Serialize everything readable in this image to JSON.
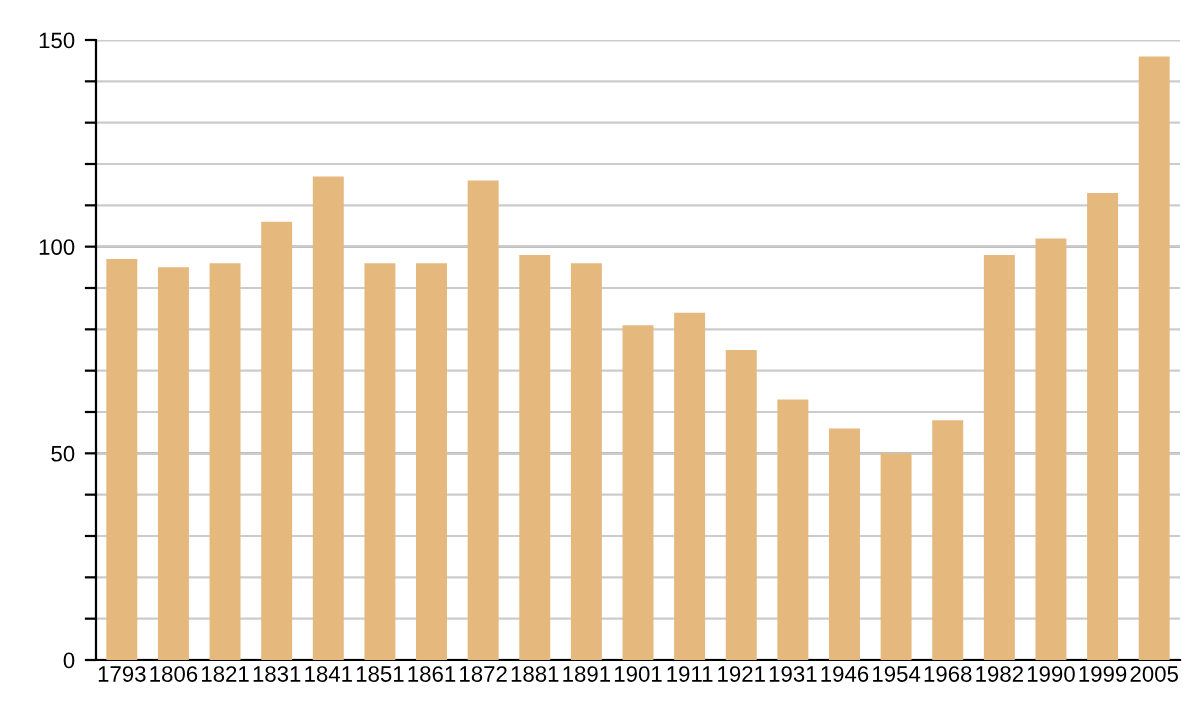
{
  "chart_data": {
    "type": "bar",
    "categories": [
      "1793",
      "1806",
      "1821",
      "1831",
      "1841",
      "1851",
      "1861",
      "1872",
      "1881",
      "1891",
      "1901",
      "1911",
      "1921",
      "1931",
      "1946",
      "1954",
      "1968",
      "1982",
      "1990",
      "1999",
      "2005"
    ],
    "values": [
      97,
      95,
      96,
      106,
      117,
      96,
      96,
      116,
      98,
      96,
      81,
      84,
      75,
      63,
      56,
      50,
      58,
      98,
      102,
      113,
      146
    ],
    "color": "#e5b87e",
    "ylim": [
      0,
      150
    ],
    "yticks": [
      0,
      {
        "value": 10,
        "label": null
      },
      {
        "value": 20,
        "label": null
      },
      {
        "value": 30,
        "label": null
      },
      {
        "value": 40,
        "label": null
      },
      50,
      {
        "value": 60,
        "label": null
      },
      {
        "value": 70,
        "label": null
      },
      {
        "value": 80,
        "label": null
      },
      {
        "value": 90,
        "label": null
      },
      100,
      {
        "value": 110,
        "label": null
      },
      {
        "value": 120,
        "label": null
      },
      {
        "value": 130,
        "label": null
      },
      {
        "value": 140,
        "label": null
      },
      150
    ],
    "grid": "y"
  }
}
